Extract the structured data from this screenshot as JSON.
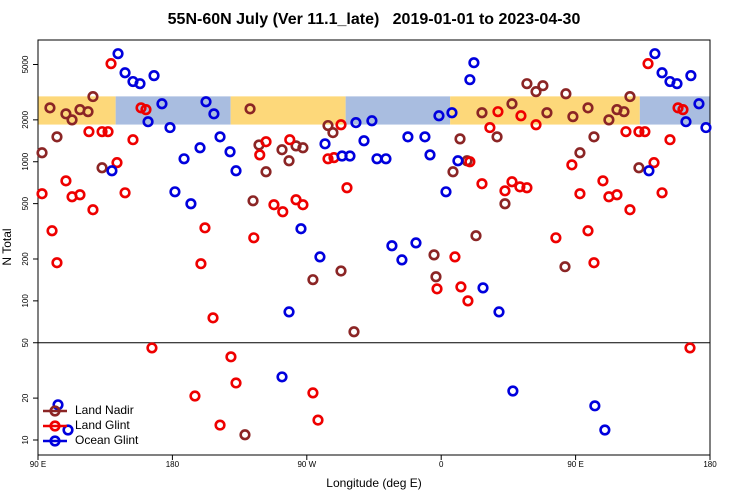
{
  "chart_data": {
    "type": "scatter",
    "title": "55N-60N July (Ver 11.1_late)   2019-01-01 to 2023-04-30",
    "x_label": "Longitude (deg E)",
    "y_label": "N Total",
    "log_y": true,
    "xlim": [
      90,
      540
    ],
    "ylim": [
      7.8,
      7500
    ],
    "xticks": [
      {
        "value": 90,
        "label": "90 E"
      },
      180,
      {
        "value": 270,
        "label": "90 W"
      },
      {
        "value": 360,
        "label": "0"
      },
      {
        "value": 450,
        "label": "90 E"
      },
      {
        "value": 540,
        "label": "180"
      }
    ],
    "yticks": [
      10,
      20,
      50,
      100,
      200,
      500,
      1000,
      2000,
      5000
    ],
    "hline": 50,
    "legend": "lower left",
    "band": {
      "ylim": [
        1850,
        2950
      ],
      "segments": [
        {
          "xlim": [
            90,
            142
          ],
          "color": "#fdd87a"
        },
        {
          "xlim": [
            142,
            219
          ],
          "color": "#a9bde0"
        },
        {
          "xlim": [
            219,
            296
          ],
          "color": "#fdd87a"
        },
        {
          "xlim": [
            296,
            366
          ],
          "color": "#a9bde0"
        },
        {
          "xlim": [
            366,
            493
          ],
          "color": "#fdd87a"
        },
        {
          "xlim": [
            493,
            540
          ],
          "color": "#a9bde0"
        }
      ]
    },
    "series": [
      {
        "name": "Land Nadir",
        "color": "#8b2525",
        "x": [
          92.7,
          98,
          102.7,
          108.7,
          112.8,
          118.1,
          123.5,
          126.8,
          132.9,
          228.6,
          232,
          234,
          238,
          242.7,
          253.4,
          258.1,
          262.8,
          267.4,
          274.1,
          284.2,
          287.5,
          292.9,
          301.6,
          355.2,
          356.5,
          367.9,
          372.6,
          377.3,
          383.3,
          387.3,
          397.4,
          402.7,
          407.4,
          417.4,
          423.5,
          428.1,
          430.8,
          442.9,
          443.5,
          448.2,
          452.9,
          458.3,
          462.3,
          472.3,
          477.7,
          482.4,
          486.4,
          492.4
        ],
        "values": [
          1160,
          2440,
          1510,
          2210,
          2000,
          2370,
          2290,
          2940,
          905,
          10.9,
          2400,
          524,
          1320,
          847,
          1220,
          1016,
          1300,
          1260,
          142,
          1820,
          1620,
          164,
          60,
          214,
          149,
          847,
          1460,
          1016,
          294,
          2250,
          1510,
          499,
          2610,
          3640,
          3190,
          3520,
          2250,
          176,
          3080,
          2110,
          1160,
          2440,
          1510,
          2000,
          2370,
          2290,
          2940,
          905
        ]
      },
      {
        "name": "Land Glint",
        "color": "#ee0000",
        "x": [
          92.7,
          99.4,
          102.7,
          108.7,
          112.8,
          118.1,
          124.1,
          126.8,
          132.9,
          136.9,
          138.9,
          142.9,
          148.3,
          153.6,
          159,
          162.3,
          166.3,
          195.1,
          199.1,
          201.8,
          207.2,
          211.9,
          219.2,
          222.6,
          234.5,
          238.5,
          242.7,
          248,
          253.9,
          258.6,
          262.8,
          267.4,
          274.1,
          277.5,
          284.2,
          288.2,
          292.9,
          296.9,
          357.2,
          369.2,
          373.2,
          377.9,
          379.2,
          387.3,
          392.6,
          398,
          402.7,
          407.4,
          412.7,
          413.4,
          417.4,
          423.5,
          436.8,
          447.5,
          452.9,
          458.3,
          462.3,
          468.3,
          472.3,
          477.7,
          483.7,
          486.4,
          492.4,
          496.4,
          498.5,
          502.5,
          507.9,
          513.2,
          518.6,
          521.9,
          526.6
        ],
        "values": [
          589,
          319,
          188,
          729,
          560,
          579,
          1645,
          452,
          1645,
          1645,
          5070,
          985,
          598,
          1440,
          2440,
          2370,
          45.9,
          20.7,
          185,
          335,
          75.5,
          12.8,
          39.6,
          25.7,
          284,
          1120,
          1393,
          491,
          437,
          1440,
          533,
          491,
          21.8,
          13.9,
          1050,
          1070,
          1845,
          650,
          122,
          207,
          126,
          100,
          1000,
          695,
          1760,
          2290,
          618,
          718,
          660,
          2140,
          650,
          1845,
          284,
          950,
          589,
          319,
          188,
          729,
          560,
          579,
          1645,
          452,
          1645,
          1645,
          5070,
          985,
          598,
          1440,
          2440,
          2370,
          45.9
        ]
      },
      {
        "name": "Ocean Glint",
        "color": "#0000dd",
        "x": [
          103.4,
          110.1,
          139.5,
          143.6,
          148.3,
          153.6,
          158.3,
          163.7,
          167.7,
          173,
          178.4,
          181.7,
          187.8,
          192.4,
          198.5,
          202.5,
          207.8,
          211.9,
          218.6,
          222.6,
          253.4,
          258.1,
          266.1,
          278.8,
          282.2,
          293.6,
          298.9,
          302.9,
          308.3,
          313.6,
          317,
          323,
          327,
          333.7,
          337.7,
          343.1,
          349.1,
          352.5,
          358.5,
          363.2,
          367.2,
          371.2,
          379.2,
          381.9,
          388,
          398.7,
          408,
          462.9,
          469.6,
          499.1,
          503.1,
          507.9,
          513.2,
          517.9,
          523.9,
          527.2,
          532.6,
          537.3
        ],
        "values": [
          17.9,
          11.8,
          861,
          5980,
          4360,
          3770,
          3640,
          1940,
          4160,
          2610,
          1760,
          608,
          1050,
          499,
          1260,
          2700,
          2210,
          1510,
          1180,
          861,
          28.4,
          83.3,
          330,
          207,
          1345,
          1100,
          1100,
          1910,
          1415,
          1970,
          1050,
          1050,
          249,
          197,
          1510,
          261,
          1510,
          1120,
          2140,
          608,
          2250,
          1016,
          3890,
          5150,
          124,
          83.3,
          22.5,
          17.6,
          11.8,
          861,
          5980,
          4360,
          3770,
          3640,
          1940,
          4160,
          2610,
          1760
        ]
      }
    ]
  }
}
